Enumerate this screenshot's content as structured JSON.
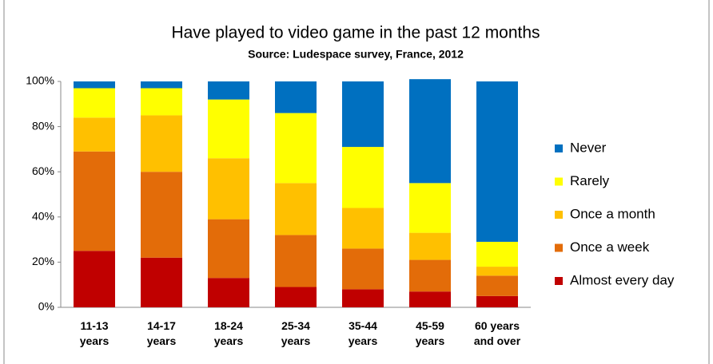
{
  "chart_data": {
    "type": "stacked_bar",
    "title": "Have played to video game in the past 12 months",
    "subtitle": "Source: Ludespace survey, France, 2012",
    "categories": [
      "11-13 years",
      "14-17 years",
      "18-24 years",
      "25-34 years",
      "35-44 years",
      "45-59 years",
      "60 years and over"
    ],
    "series": [
      {
        "name": "Almost every day",
        "color": "#c00000",
        "values": [
          25,
          22,
          13,
          9,
          8,
          7,
          5
        ]
      },
      {
        "name": "Once a week",
        "color": "#e36c09",
        "values": [
          44,
          38,
          26,
          23,
          18,
          14,
          9
        ]
      },
      {
        "name": "Once a month",
        "color": "#ffc000",
        "values": [
          15,
          25,
          27,
          23,
          18,
          12,
          4
        ]
      },
      {
        "name": "Rarely",
        "color": "#ffff00",
        "values": [
          13,
          12,
          26,
          31,
          27,
          22,
          11
        ]
      },
      {
        "name": "Never",
        "color": "#0070c0",
        "values": [
          3,
          3,
          8,
          14,
          29,
          46,
          71
        ]
      }
    ],
    "ylim": [
      0,
      100
    ],
    "yticks": [
      {
        "value": 0,
        "label": "0%"
      },
      {
        "value": 20,
        "label": "20%"
      },
      {
        "value": 40,
        "label": "40%"
      },
      {
        "value": 60,
        "label": "60%"
      },
      {
        "value": 80,
        "label": "80%"
      },
      {
        "value": 100,
        "label": "100%"
      }
    ],
    "legend": "right"
  }
}
